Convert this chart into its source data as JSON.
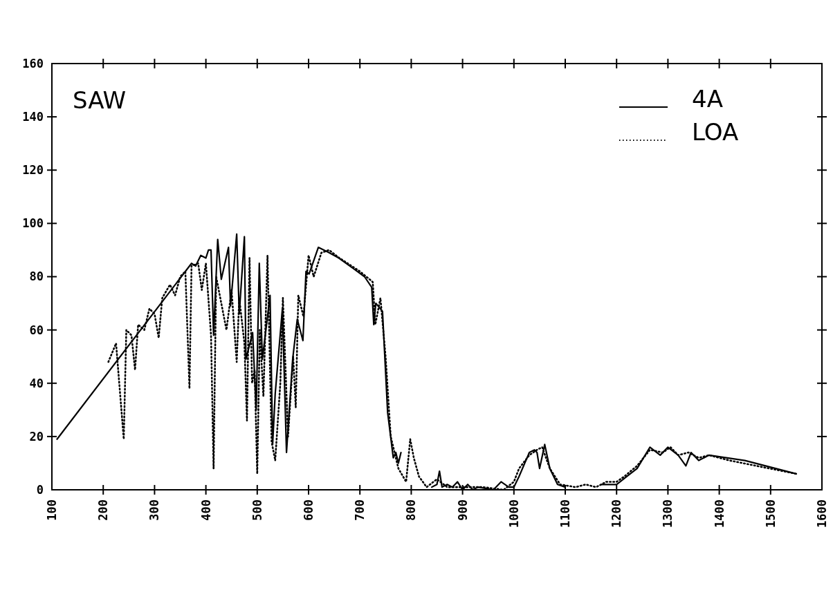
{
  "chart_data": {
    "type": "line",
    "title": "SAW",
    "xlim": [
      100,
      1600
    ],
    "ylim": [
      0,
      160
    ],
    "xticks": [
      100,
      200,
      300,
      400,
      500,
      600,
      700,
      800,
      900,
      1000,
      1100,
      1200,
      1300,
      1400,
      1500,
      1600
    ],
    "yticks": [
      0,
      20,
      40,
      60,
      80,
      100,
      120,
      140,
      160
    ],
    "grid": false,
    "legend": "top right",
    "series": [
      {
        "name": "4A",
        "color": "#000000",
        "line_style": "solid",
        "x": [
          110,
          372,
          380,
          390,
          400,
          405,
          410,
          415,
          423,
          430,
          444,
          448,
          460,
          465,
          475,
          478,
          491,
          498,
          504,
          510,
          525,
          530,
          535,
          549,
          557,
          569,
          578,
          589,
          595,
          601,
          619,
          640,
          659,
          709,
          723,
          727,
          731,
          744,
          754,
          765,
          770,
          775,
          780,
          null,
          840,
          850,
          855,
          860,
          870,
          880,
          890,
          900,
          910,
          920,
          930,
          960,
          975,
          990,
          1000,
          1010,
          1030,
          1040,
          1045,
          1050,
          1060,
          1070,
          1085,
          1100,
          null,
          1170,
          1200,
          1220,
          1240,
          1265,
          1285,
          1300,
          1320,
          1335,
          1345,
          1360,
          1380,
          1450,
          1550
        ],
        "values": [
          19,
          85,
          84,
          88,
          87,
          90,
          90,
          58,
          94,
          79,
          91,
          69,
          96,
          66,
          95,
          49,
          59,
          30,
          85,
          49,
          73,
          17,
          36,
          68,
          14,
          49,
          64,
          56,
          82,
          81,
          91,
          89,
          87,
          80,
          76,
          62,
          70,
          67,
          29,
          12,
          14,
          10,
          14,
          null,
          1,
          2,
          7,
          1,
          2,
          1,
          3,
          0,
          2,
          0,
          1,
          0,
          3,
          1,
          1,
          5,
          14,
          15,
          14,
          8,
          17,
          8,
          2,
          1,
          null,
          2,
          2,
          5,
          8,
          16,
          13,
          16,
          13,
          9,
          14,
          11,
          13,
          11,
          6
        ]
      },
      {
        "name": "LOA",
        "color": "#000000",
        "line_style": "dotted",
        "x": [
          210,
          225,
          240,
          245,
          255,
          262,
          268,
          280,
          290,
          300,
          308,
          315,
          330,
          340,
          350,
          360,
          368,
          372,
          385,
          392,
          400,
          410,
          415,
          420,
          430,
          440,
          450,
          460,
          465,
          475,
          480,
          485,
          490,
          495,
          500,
          505,
          512,
          520,
          528,
          535,
          545,
          550,
          560,
          570,
          575,
          580,
          590,
          600,
          610,
          625,
          640,
          660,
          700,
          725,
          730,
          740,
          750,
          760,
          775,
          790,
          798,
          805,
          815,
          830,
          850,
          870,
          900,
          940,
          980,
          1000,
          1010,
          1030,
          1045,
          1055,
          1070,
          1090,
          1120,
          1140,
          1160,
          1180,
          1200,
          1215,
          1240,
          1265,
          1290,
          1305,
          1320,
          1340,
          1360,
          1380,
          1420,
          1550
        ],
        "values": [
          48,
          55,
          19,
          60,
          58,
          45,
          62,
          60,
          68,
          66,
          57,
          72,
          77,
          73,
          80,
          82,
          38,
          84,
          85,
          75,
          85,
          58,
          8,
          80,
          70,
          60,
          75,
          48,
          72,
          55,
          26,
          87,
          40,
          45,
          6,
          60,
          35,
          88,
          18,
          11,
          40,
          72,
          20,
          50,
          31,
          73,
          65,
          88,
          80,
          89,
          90,
          87,
          82,
          78,
          62,
          72,
          50,
          20,
          8,
          3,
          19,
          12,
          5,
          1,
          4,
          1,
          1,
          1,
          0,
          3,
          8,
          13,
          15,
          16,
          8,
          2,
          1,
          2,
          1,
          3,
          3,
          5,
          9,
          15,
          14,
          16,
          13,
          14,
          12,
          13,
          11,
          6
        ]
      }
    ]
  }
}
